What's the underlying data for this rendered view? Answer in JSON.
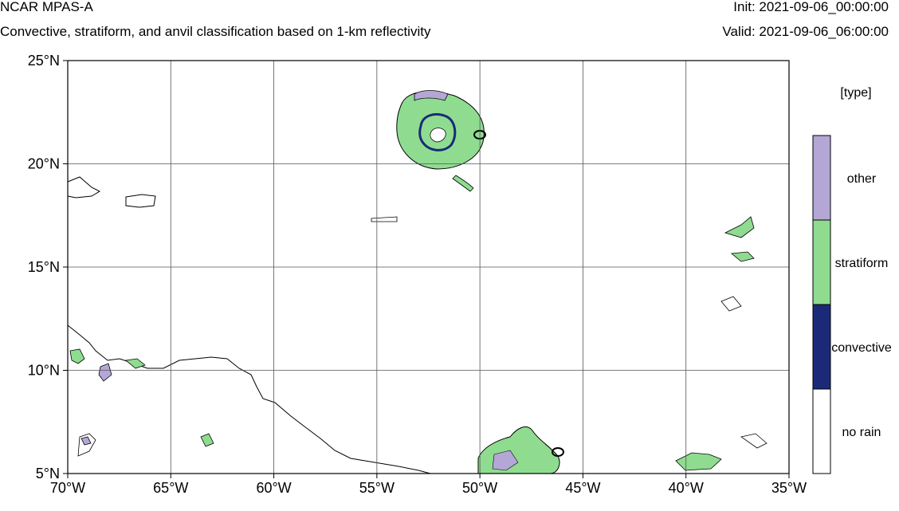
{
  "header": {
    "model": "NCAR MPAS-A",
    "description": "Convective, stratiform, and anvil classification based on 1-km reflectivity",
    "init": "Init: 2021-09-06_00:00:00",
    "valid": "Valid: 2021-09-06_06:00:00"
  },
  "map": {
    "lon_range": [
      -70,
      -35
    ],
    "lat_range": [
      5,
      25
    ],
    "lon_ticks": [
      -70,
      -65,
      -60,
      -55,
      -50,
      -45,
      -40,
      -35
    ],
    "lon_tick_labels": [
      "70°W",
      "65°W",
      "60°W",
      "55°W",
      "50°W",
      "45°W",
      "40°W",
      "35°W"
    ],
    "lat_ticks": [
      25,
      20,
      15,
      10,
      5
    ],
    "lat_tick_labels": [
      "25°N",
      "20°N",
      "15°N",
      "10°N",
      "5°N"
    ],
    "grid": true
  },
  "legend": {
    "title": "[type]",
    "items": [
      {
        "label": "other",
        "color": "#b4a7d6"
      },
      {
        "label": "stratiform",
        "color": "#8fdc91"
      },
      {
        "label": "convective",
        "color": "#1b2a78"
      },
      {
        "label": "no rain",
        "color": "#ffffff"
      }
    ]
  }
}
